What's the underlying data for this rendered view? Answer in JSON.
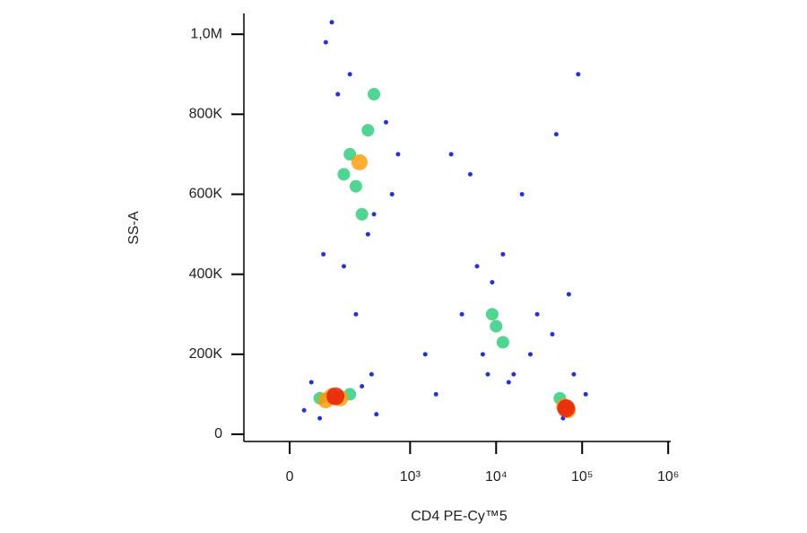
{
  "chart_data": {
    "type": "scatter",
    "x_label": "CD4 PE-Cy™5",
    "y_label": "SS-A",
    "xlim": [
      -380,
      1070000
    ],
    "ylim": [
      -18000,
      1052000
    ],
    "x_scale": "biexponential",
    "xticks": [
      0,
      {
        "value": 1000,
        "label": "10³"
      },
      {
        "value": 10000,
        "label": "10⁴"
      },
      {
        "value": 100000,
        "label": "10⁵"
      },
      {
        "value": 1000000,
        "label": "10⁶"
      }
    ],
    "yticks": [
      0,
      {
        "value": 200000,
        "label": "200K"
      },
      {
        "value": 400000,
        "label": "400K"
      },
      {
        "value": 600000,
        "label": "600K"
      },
      {
        "value": 800000,
        "label": "800K"
      },
      {
        "value": 1000000,
        "label": "1,0M"
      }
    ],
    "series": [
      {
        "color": "#2233dd",
        "x": [
          120,
          180,
          250,
          600,
          680,
          720,
          300,
          350,
          500,
          800,
          900,
          280,
          450,
          650,
          700,
          3000,
          5000,
          20000,
          50000,
          90000,
          6000,
          9000,
          16000,
          25000,
          14000,
          4000,
          7000,
          60000,
          80000,
          110000,
          2000,
          1500,
          400,
          550,
          850,
          30000,
          45000,
          70000,
          12000,
          8000
        ],
        "values": [
          60000,
          130000,
          40000,
          120000,
          150000,
          50000,
          980000,
          1030000,
          900000,
          780000,
          700000,
          450000,
          420000,
          500000,
          550000,
          700000,
          650000,
          600000,
          750000,
          900000,
          420000,
          380000,
          150000,
          200000,
          130000,
          300000,
          200000,
          40000,
          150000,
          100000,
          100000,
          200000,
          850000,
          300000,
          600000,
          300000,
          250000,
          350000,
          450000,
          150000
        ]
      },
      {
        "color": "#22cc77",
        "x": [
          500,
          550,
          650,
          600,
          700,
          450,
          10000,
          12000,
          9000,
          250,
          500,
          55000
        ],
        "values": [
          700000,
          620000,
          760000,
          550000,
          850000,
          650000,
          270000,
          230000,
          300000,
          90000,
          100000,
          90000
        ]
      },
      {
        "color": "#ff9900",
        "x": [
          350,
          420,
          300,
          62000,
          68000,
          580
        ],
        "values": [
          95000,
          90000,
          85000,
          70000,
          60000,
          680000
        ]
      },
      {
        "color": "#e3170a",
        "x": [
          380,
          65000
        ],
        "values": [
          95000,
          65000
        ]
      }
    ]
  }
}
